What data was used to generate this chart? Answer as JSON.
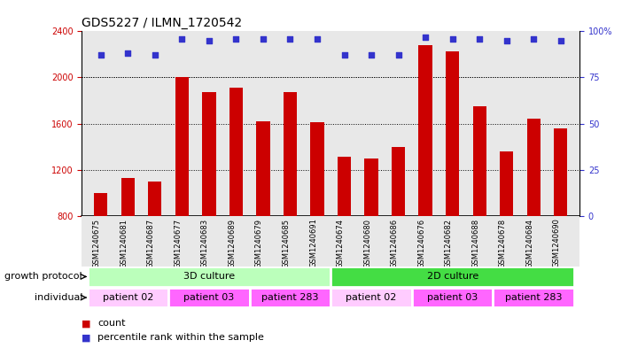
{
  "title": "GDS5227 / ILMN_1720542",
  "samples": [
    "GSM1240675",
    "GSM1240681",
    "GSM1240687",
    "GSM1240677",
    "GSM1240683",
    "GSM1240689",
    "GSM1240679",
    "GSM1240685",
    "GSM1240691",
    "GSM1240674",
    "GSM1240680",
    "GSM1240686",
    "GSM1240676",
    "GSM1240682",
    "GSM1240688",
    "GSM1240678",
    "GSM1240684",
    "GSM1240690"
  ],
  "counts": [
    1000,
    1130,
    1100,
    2000,
    1870,
    1910,
    1620,
    1870,
    1610,
    1310,
    1300,
    1400,
    2280,
    2230,
    1750,
    1360,
    1640,
    1560
  ],
  "percentiles": [
    87,
    88,
    87,
    96,
    95,
    96,
    96,
    96,
    96,
    87,
    87,
    87,
    97,
    96,
    96,
    95,
    96,
    95
  ],
  "bar_color": "#cc0000",
  "dot_color": "#3333cc",
  "ylim_left": [
    800,
    2400
  ],
  "ylim_right": [
    0,
    100
  ],
  "yticks_left": [
    800,
    1200,
    1600,
    2000,
    2400
  ],
  "yticks_right": [
    0,
    25,
    50,
    75,
    100
  ],
  "grid_values": [
    1200,
    1600,
    2000
  ],
  "growth_protocol_groups": [
    {
      "label": "3D culture",
      "start": 0,
      "end": 9,
      "color": "#bbffbb"
    },
    {
      "label": "2D culture",
      "start": 9,
      "end": 18,
      "color": "#44dd44"
    }
  ],
  "individual_groups": [
    {
      "label": "patient 02",
      "start": 0,
      "end": 3,
      "color": "#ffccff"
    },
    {
      "label": "patient 03",
      "start": 3,
      "end": 6,
      "color": "#ff66ff"
    },
    {
      "label": "patient 283",
      "start": 6,
      "end": 9,
      "color": "#ff66ff"
    },
    {
      "label": "patient 02",
      "start": 9,
      "end": 12,
      "color": "#ffccff"
    },
    {
      "label": "patient 03",
      "start": 12,
      "end": 15,
      "color": "#ff66ff"
    },
    {
      "label": "patient 283",
      "start": 15,
      "end": 18,
      "color": "#ff66ff"
    }
  ],
  "row_labels": [
    "growth protocol",
    "individual"
  ],
  "legend_count_color": "#cc0000",
  "legend_dot_color": "#3333cc",
  "bg_color": "#ffffff",
  "plot_bg_color": "#e8e8e8",
  "title_fontsize": 10,
  "tick_fontsize": 7,
  "label_fontsize": 8,
  "row_label_fontsize": 8
}
